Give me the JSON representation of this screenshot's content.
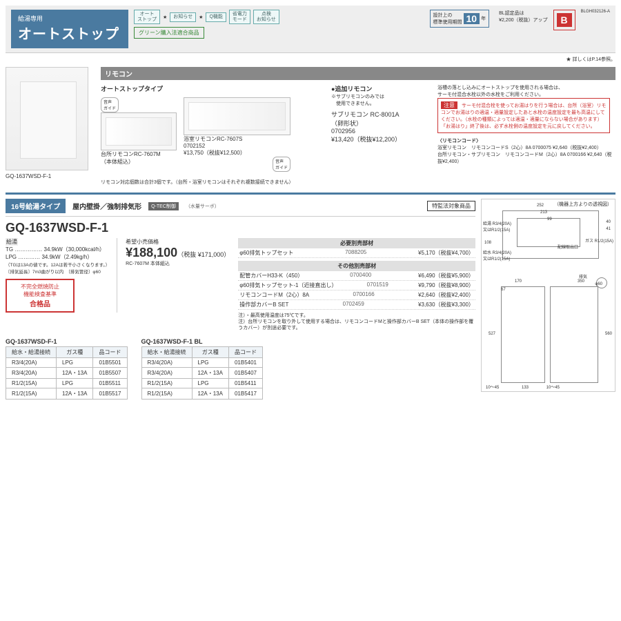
{
  "header": {
    "category_small": "給湯専用",
    "category_big": "オートストップ",
    "badges": [
      "オート\nストップ",
      "お知らせ",
      "Q機能",
      "省電力\nモード",
      "点検\nお知らせ"
    ],
    "green_purchase": "グリーン購入法適合商品",
    "design_life_label": "設計上の\n標準使用期間",
    "design_life_years": "10",
    "design_life_unit": "年",
    "bl_note": "BL認定品は\n¥2,200（税抜）アップ",
    "bl_code": "BLGH032126-A",
    "star_note": "★ 詳しくはP.14参照。"
  },
  "product_image_caption": "GQ-1637WSD-F-1",
  "remote": {
    "section_label": "リモコン",
    "type_label": "オートストップタイプ",
    "voice_guide": "音声\nガイド",
    "kitchen": {
      "model": "台所リモコンRC-7607M",
      "note": "（本体組込）"
    },
    "bath": {
      "model": "浴室リモコンRC-7607S",
      "code": "0702152",
      "price": "¥13,750（税抜¥12,500）"
    },
    "capacity_note": "リモコン対応個数は合計3個です。（台所・浴室リモコンはそれぞれ複数接続できません）",
    "additional_header": "●追加リモコン",
    "additional_sub": "※サブリモコンのみでは\n　使用できません。",
    "sub": {
      "model": "サブリモコン RC-8001A",
      "shape": "（卵形状）",
      "code": "0702956",
      "price": "¥13,420（税抜¥12,200）"
    },
    "drop_note": "浴槽の落とし込みにオートストップを使用される場合は、\nサーモ付混合水栓以外の水栓をご利用ください。",
    "caution_label": "注意",
    "caution_text": "サーモ付混合栓を使ってお湯はりを行う場合は、台所（浴室）リモコンでお湯はりの適温・適量設定したあと水栓の温度設定を最も高温にしてください。（水栓の種類によっては適温・適量にならない場合があります）「お湯はり」終了後は、必ず水栓側の温度設定を元に戻してください。",
    "cord_header": "〈リモコンコード〉",
    "cord_rows": [
      "浴室リモコン　リモコンコードS（2心）8A 0700075 ¥2,640（税抜¥2,400）",
      "台所リモコン・サブリモコン　リモコンコードM（2心）8A 0700166 ¥2,640（税抜¥2,400）"
    ]
  },
  "spec": {
    "type_tag": "16号給湯タイプ",
    "mount": "屋内壁掛／強制排気形",
    "qtec": "Q-TEC制御",
    "servo": "（水量サーボ）",
    "law_badge": "特監法対象商品",
    "model": "GQ-1637WSD-F-1",
    "gas_label": "給湯",
    "gas_tg": "TG …………… 34.9kW（30,000kcal/h）",
    "gas_lpg": "LPG ………… 34.9kW（2.49kg/h）",
    "gas_note1": "（TGは13Aの値です。12Aは若干小さくなります。）",
    "gas_note2": "〔排気延長〕7m3曲がり以内　〔排気管径〕φ60",
    "price_label": "希望小売価格",
    "price": "¥188,100",
    "price_tax": "（税抜 ¥171,000）",
    "price_sub": "RC-7607M 本体組込",
    "cert_l1": "不完全燃焼防止",
    "cert_l2": "機能検査基準",
    "cert_pass": "合格品"
  },
  "options": {
    "req_header": "必要別売部材",
    "req_rows": [
      {
        "name": "φ60排気トップセット",
        "code": "7088205",
        "price": "¥5,170（税抜¥4,700）"
      }
    ],
    "other_header": "その他別売部材",
    "other_rows": [
      {
        "name": "配管カバーH33-K（450）",
        "code": "0700400",
        "price": "¥6,490（税抜¥5,900）"
      },
      {
        "name": "φ60排気トップセット-1（近接直出し）",
        "code": "0701519",
        "price": "¥9,790（税抜¥8,900）"
      },
      {
        "name": "リモコンコードM（2心）8A",
        "code": "0700166",
        "price": "¥2,640（税抜¥2,400）"
      },
      {
        "name": "操作部カバーB SET",
        "code": "0702459",
        "price": "¥3,630（税抜¥3,300）"
      }
    ],
    "foot1": "注）・最高使用温度は75℃です。",
    "foot2": "注）台所リモコンを取り外して使用する場合は、リモコンコードMと操作部カバーB SET（本体の操作部を覆うカバー）が別途必要です。"
  },
  "code_tables": {
    "t1_header": "GQ-1637WSD-F-1",
    "t2_header": "GQ-1637WSD-F-1 BL",
    "columns": [
      "給水・給湯接続",
      "ガス種",
      "品コード"
    ],
    "t1_rows": [
      [
        "R3/4(20A)",
        "LPG",
        "01B5501"
      ],
      [
        "R3/4(20A)",
        "12A・13A",
        "01B5507"
      ],
      [
        "R1/2(15A)",
        "LPG",
        "01B5511"
      ],
      [
        "R1/2(15A)",
        "12A・13A",
        "01B5517"
      ]
    ],
    "t2_rows": [
      [
        "R3/4(20A)",
        "LPG",
        "01B5401"
      ],
      [
        "R3/4(20A)",
        "12A・13A",
        "01B5407"
      ],
      [
        "R1/2(15A)",
        "LPG",
        "01B5411"
      ],
      [
        "R1/2(15A)",
        "12A・13A",
        "01B5417"
      ]
    ]
  },
  "drawing": {
    "title": "（機器上方よりの透視図）",
    "labels": {
      "w252": "252",
      "w213": "213",
      "w99": "99",
      "h40": "40",
      "h41": "41",
      "h108": "108",
      "supply": "給湯 R3/4(20A)\n又はR1/2(15A)",
      "water": "給水 R3/4(20A)\n又はR1/2(15A)",
      "gas": "ガス R1/2(15A)",
      "pipe_exit": "配線取出口",
      "w170": "170",
      "w350": "350",
      "off1": "10〜45",
      "off2": "10〜45",
      "d67": "67",
      "d133": "133",
      "h527": "527",
      "h560": "560",
      "phi60": "φ60",
      "exhaust": "排気"
    }
  }
}
